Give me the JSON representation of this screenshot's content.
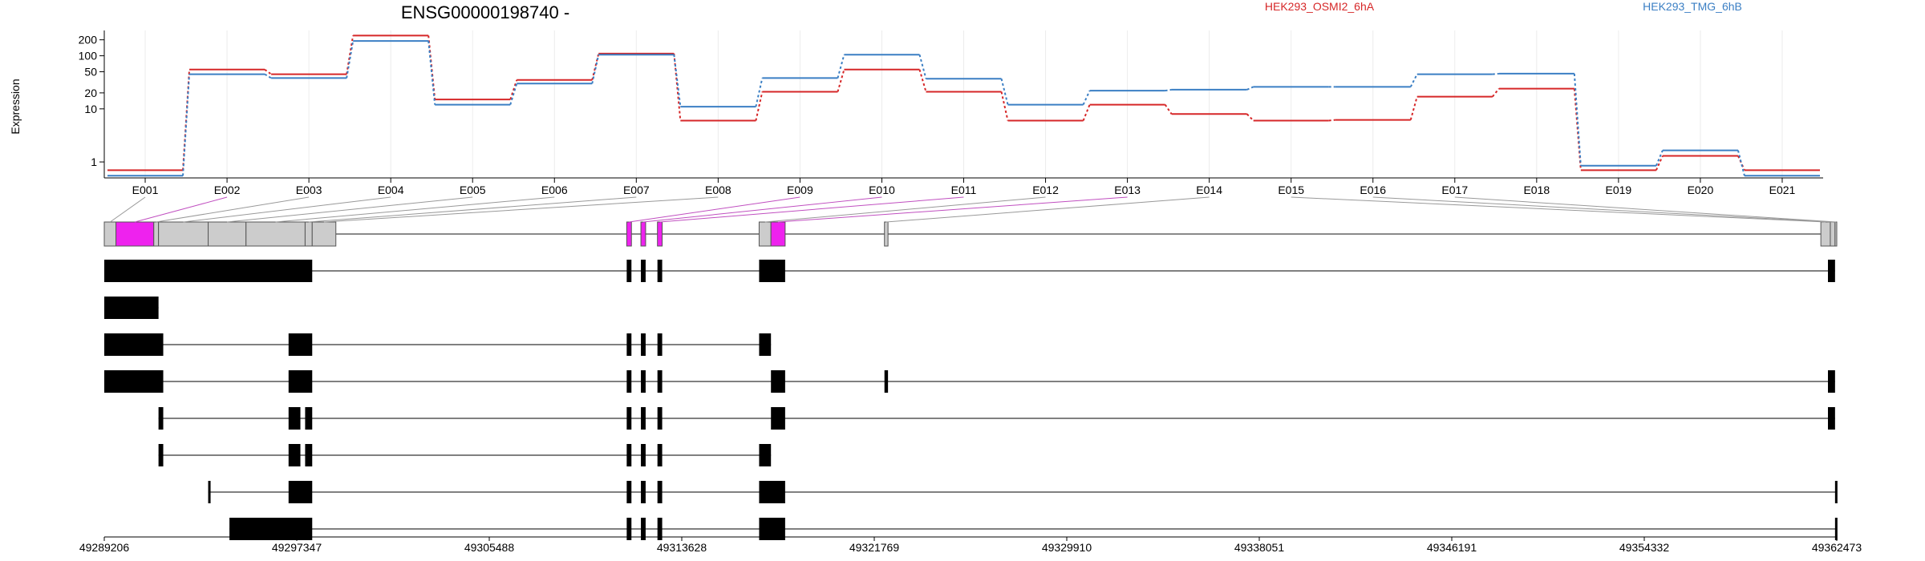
{
  "chart_data": {
    "type": "line",
    "title": "ENSG00000198740 -",
    "ylabel": "Expression",
    "yscale": "log",
    "ylim": [
      0.5,
      300
    ],
    "yticks": [
      "1",
      "10",
      "20",
      "50",
      "100",
      "200"
    ],
    "categories": [
      "E001",
      "E002",
      "E003",
      "E004",
      "E005",
      "E006",
      "E007",
      "E008",
      "E009",
      "E010",
      "E011",
      "E012",
      "E013",
      "E014",
      "E015",
      "E016",
      "E017",
      "E018",
      "E019",
      "E020",
      "E021"
    ],
    "series": [
      {
        "name": "HEK293_OSMI2_6hA",
        "color": "#d62728",
        "values": [
          0.7,
          55,
          45,
          240,
          15,
          35,
          110,
          6,
          21,
          55,
          21,
          6,
          12,
          8,
          6,
          6.2,
          17,
          24,
          0.7,
          1.3,
          0.7
        ]
      },
      {
        "name": "HEK293_TMG_6hB",
        "color": "#3b7fc4",
        "values": [
          0.55,
          45,
          38,
          190,
          12,
          30,
          105,
          11,
          38,
          105,
          37,
          12,
          22,
          23,
          26,
          26,
          45,
          46,
          0.85,
          1.65,
          0.55
        ]
      }
    ],
    "genomic_axis": {
      "ticks": [
        "49289206",
        "49297347",
        "49305488",
        "49313628",
        "49321769",
        "49329910",
        "49338051",
        "49346191",
        "49354332",
        "49362473"
      ]
    },
    "transcript_count": 8,
    "colors": {
      "highlight_exon": "#ee22ee",
      "gene_exon": "#cccccc",
      "transcript_exon": "#000000"
    }
  }
}
